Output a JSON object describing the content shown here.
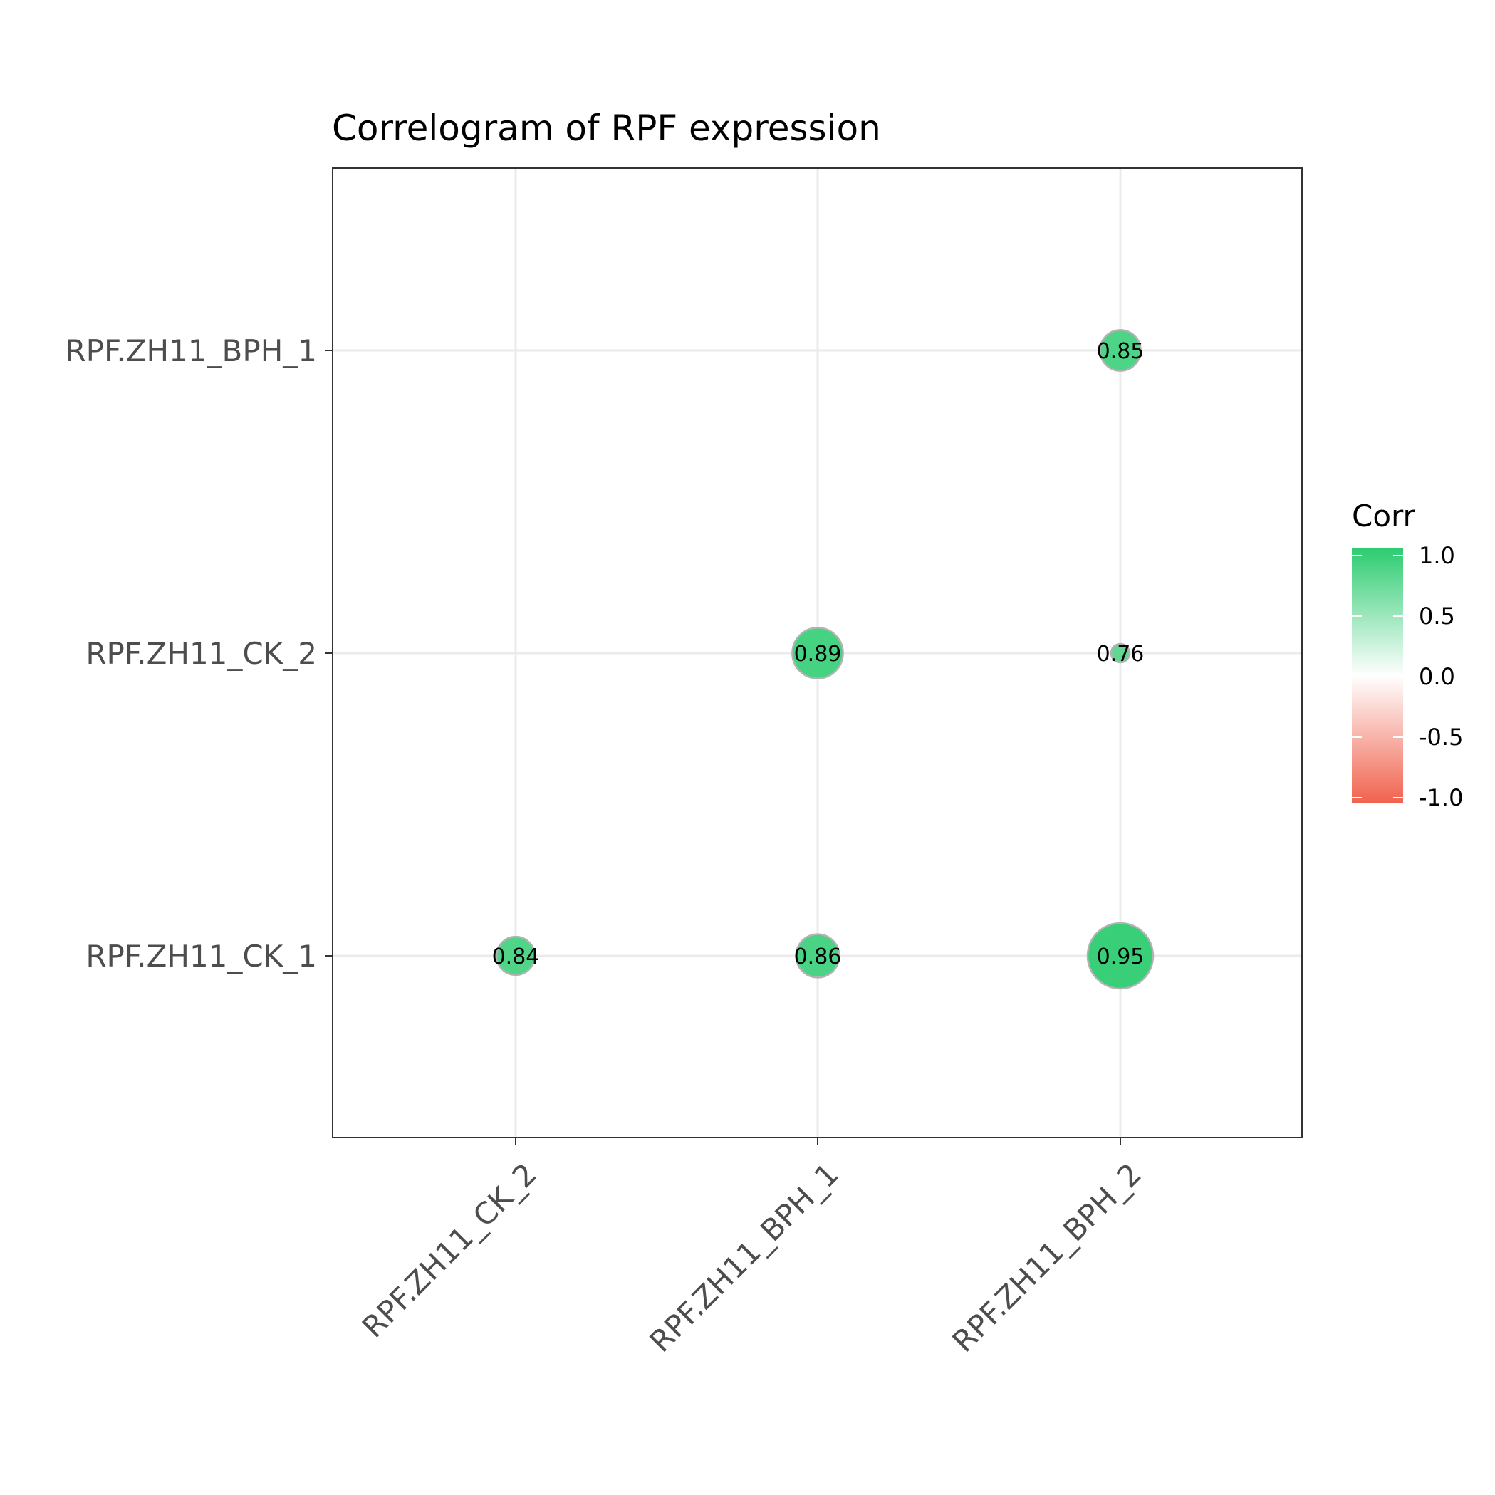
{
  "chart_data": {
    "type": "scatter",
    "title": "Correlogram of RPF expression",
    "x_categories": [
      "RPF.ZH11_CK_2",
      "RPF.ZH11_BPH_1",
      "RPF.ZH11_BPH_2"
    ],
    "y_categories": [
      "RPF.ZH11_CK_1",
      "RPF.ZH11_CK_2",
      "RPF.ZH11_BPH_1"
    ],
    "points": [
      {
        "x": "RPF.ZH11_CK_2",
        "y": "RPF.ZH11_CK_1",
        "value": 0.84,
        "label": "0.84"
      },
      {
        "x": "RPF.ZH11_BPH_1",
        "y": "RPF.ZH11_CK_1",
        "value": 0.86,
        "label": "0.86"
      },
      {
        "x": "RPF.ZH11_BPH_2",
        "y": "RPF.ZH11_CK_1",
        "value": 0.95,
        "label": "0.95"
      },
      {
        "x": "RPF.ZH11_BPH_1",
        "y": "RPF.ZH11_CK_2",
        "value": 0.89,
        "label": "0.89"
      },
      {
        "x": "RPF.ZH11_BPH_2",
        "y": "RPF.ZH11_CK_2",
        "value": 0.76,
        "label": "0.76"
      },
      {
        "x": "RPF.ZH11_BPH_2",
        "y": "RPF.ZH11_BPH_1",
        "value": 0.85,
        "label": "0.85"
      }
    ],
    "legend": {
      "title": "Corr",
      "position": "right",
      "ticks": [
        1.0,
        0.5,
        0.0,
        -0.5,
        -1.0
      ],
      "tick_labels": [
        "1.0",
        "0.5",
        "0.0",
        "-0.5",
        "-1.0"
      ],
      "range": [
        -1,
        1
      ],
      "colors": {
        "high": "#2ecc71",
        "mid": "#ffffff",
        "low": "#f0624d"
      }
    },
    "grid": true,
    "x_tick_rotation": "45 degrees"
  }
}
